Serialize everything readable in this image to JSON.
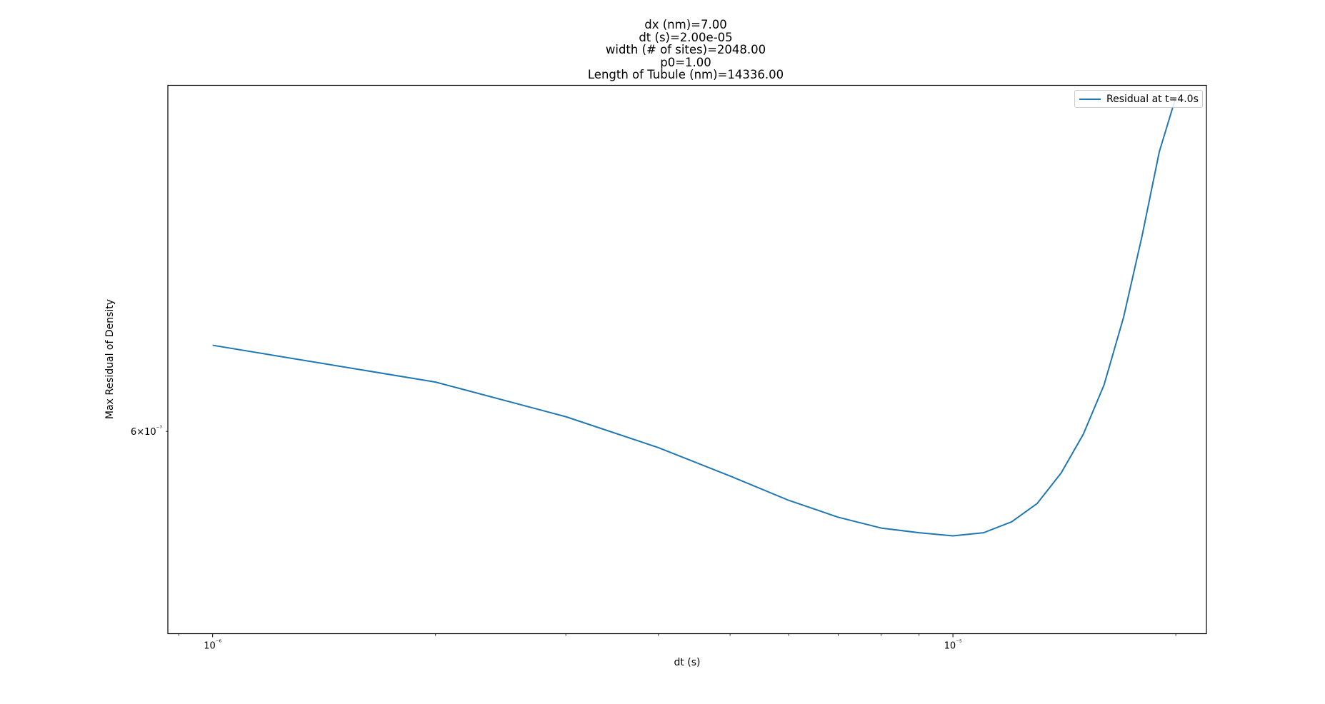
{
  "figure": {
    "title_lines": [
      "dx (nm)=7.00",
      "dt (s)=2.00e-05",
      "width (# of sites)=2048.00",
      "p0=1.00",
      "Length of Tubule (nm)=14336.00"
    ]
  },
  "chart_data": {
    "type": "line",
    "title": "dx (nm)=7.00\ndt (s)=2.00e-05\nwidth (# of sites)=2048.00\np0=1.00\nLength of Tubule (nm)=14336.00",
    "xlabel": "dt (s)",
    "ylabel": "Max Residual of Density",
    "xscale": "log",
    "yscale": "log",
    "xlim": [
      8.7e-07,
      2.2e-05
    ],
    "ylim": [
      5.35e-07,
      7.3e-07
    ],
    "x_major_ticks": [
      {
        "value": 1e-06,
        "label": "10⁻⁶"
      },
      {
        "value": 1e-05,
        "label": "10⁻⁵"
      }
    ],
    "x_minor_ticks": [
      9e-07,
      2e-06,
      3e-06,
      4e-06,
      5e-06,
      6e-06,
      7e-06,
      8e-06,
      9e-06,
      2e-05
    ],
    "y_ticks": [
      {
        "value": 6e-07,
        "label": "6×10⁻⁷"
      }
    ],
    "grid": false,
    "legend": {
      "position": "upper right",
      "entries": [
        "Residual at t=4.0s"
      ]
    },
    "series": [
      {
        "name": "Residual at t=4.0s",
        "color": "#1f77b4",
        "x": [
          1e-06,
          2e-06,
          3e-06,
          4e-06,
          5e-06,
          6e-06,
          7e-06,
          8e-06,
          9e-06,
          1e-05,
          1.1e-05,
          1.2e-05,
          1.3e-05,
          1.4e-05,
          1.5e-05,
          1.6e-05,
          1.7e-05,
          1.8e-05,
          1.9e-05,
          2e-05
        ],
        "y": [
          6.3e-07,
          6.17e-07,
          6.05e-07,
          5.945e-07,
          5.85e-07,
          5.77e-07,
          5.715e-07,
          5.68e-07,
          5.665e-07,
          5.655e-07,
          5.665e-07,
          5.7e-07,
          5.76e-07,
          5.86e-07,
          5.99e-07,
          6.16e-07,
          6.4e-07,
          6.7e-07,
          7.03e-07,
          7.25e-07
        ]
      }
    ]
  }
}
